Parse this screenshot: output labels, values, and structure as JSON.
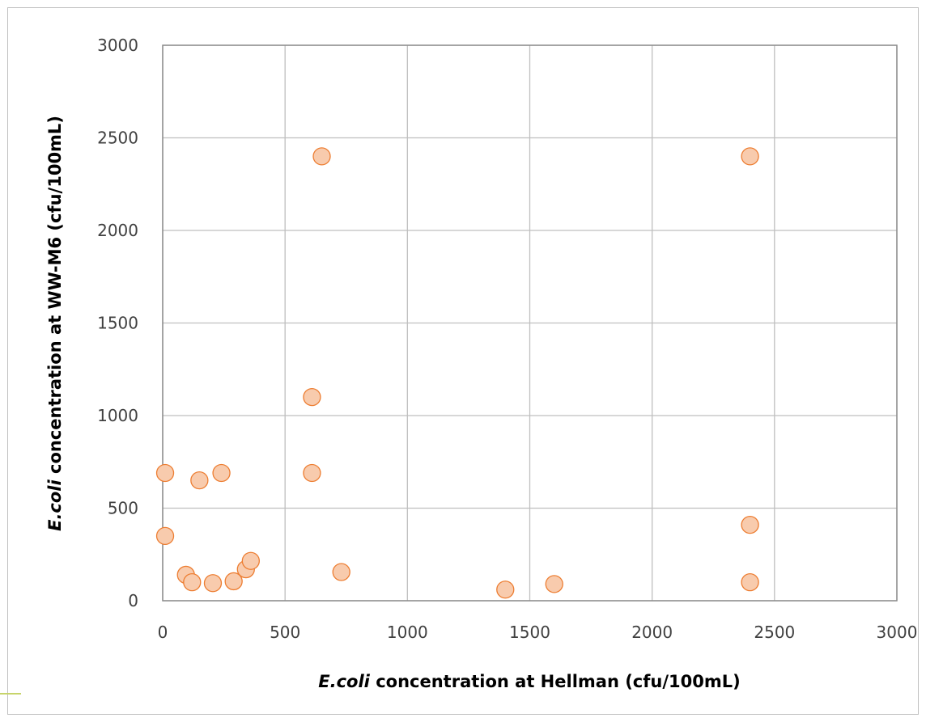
{
  "chart_data": {
    "type": "scatter",
    "title": "",
    "xlabel": {
      "italic": "E.coli",
      "rest": " concentration at Hellman (cfu/100mL)"
    },
    "ylabel": {
      "italic": "E.coli",
      "rest": " concentration at WW-M6 (cfu/100mL)"
    },
    "xlim": [
      0,
      3000
    ],
    "ylim": [
      0,
      3000
    ],
    "xticks": [
      0,
      500,
      1000,
      1500,
      2000,
      2500,
      3000
    ],
    "yticks": [
      0,
      500,
      1000,
      1500,
      2000,
      2500,
      3000
    ],
    "grid": true,
    "legend": "none",
    "marker_fill": "#f8cbad",
    "marker_stroke": "#ed7d31",
    "grid_color": "#bfbfbf",
    "points": [
      {
        "x": 10,
        "y": 690
      },
      {
        "x": 10,
        "y": 350
      },
      {
        "x": 95,
        "y": 140
      },
      {
        "x": 120,
        "y": 100
      },
      {
        "x": 150,
        "y": 650
      },
      {
        "x": 205,
        "y": 95
      },
      {
        "x": 240,
        "y": 690
      },
      {
        "x": 290,
        "y": 105
      },
      {
        "x": 340,
        "y": 170
      },
      {
        "x": 360,
        "y": 215
      },
      {
        "x": 610,
        "y": 1100
      },
      {
        "x": 610,
        "y": 690
      },
      {
        "x": 650,
        "y": 2400
      },
      {
        "x": 730,
        "y": 155
      },
      {
        "x": 1400,
        "y": 60
      },
      {
        "x": 1600,
        "y": 90
      },
      {
        "x": 2400,
        "y": 2400
      },
      {
        "x": 2400,
        "y": 410
      },
      {
        "x": 2400,
        "y": 100
      }
    ]
  }
}
